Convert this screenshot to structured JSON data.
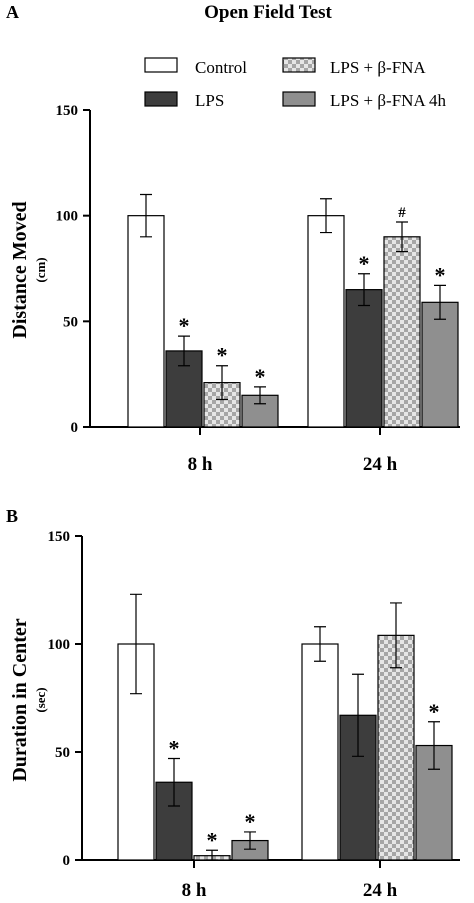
{
  "figure": {
    "title": "Open Field Test"
  },
  "legend": [
    {
      "label": "Control",
      "fill": "#ffffff",
      "pattern": ""
    },
    {
      "label": "LPS",
      "fill": "#3d3d3d",
      "pattern": ""
    },
    {
      "label": "LPS + β-FNA",
      "fill": "#cfcfcf",
      "pattern": "checker"
    },
    {
      "label": "LPS + β-FNA 4h",
      "fill": "#8f8f8f",
      "pattern": ""
    }
  ],
  "colors": {
    "control": "#ffffff",
    "lps": "#3d3d3d",
    "checker_light": "#e6e6e6",
    "checker_dark": "#a6a6a6",
    "fna4h": "#8f8f8f",
    "axis": "#000000"
  },
  "chart_data": [
    {
      "type": "bar",
      "panel": "A",
      "title": "Open Field Test",
      "ylabel": "Distance Moved",
      "yunit": "(cm)",
      "xlabel": "",
      "categories": [
        "8 h",
        "24 h"
      ],
      "ylim": [
        0,
        150
      ],
      "yticks": [
        "0",
        "50",
        "100",
        "150"
      ],
      "series": [
        {
          "name": "Control",
          "values": [
            100,
            100
          ],
          "errors": [
            10,
            8
          ],
          "marks": [
            "",
            ""
          ]
        },
        {
          "name": "LPS",
          "values": [
            36,
            65
          ],
          "errors": [
            7,
            7.5
          ],
          "marks": [
            "*",
            "*"
          ]
        },
        {
          "name": "LPS + β-FNA",
          "values": [
            21,
            90
          ],
          "errors": [
            8,
            7
          ],
          "marks": [
            "*",
            "#"
          ]
        },
        {
          "name": "LPS + β-FNA 4h",
          "values": [
            15,
            59
          ],
          "errors": [
            4,
            8
          ],
          "marks": [
            "*",
            "*"
          ]
        }
      ]
    },
    {
      "type": "bar",
      "panel": "B",
      "title": "",
      "ylabel": "Duration in Center",
      "yunit": "(sec)",
      "xlabel": "",
      "categories": [
        "8 h",
        "24 h"
      ],
      "ylim": [
        0,
        150
      ],
      "yticks": [
        "0",
        "50",
        "100",
        "150"
      ],
      "series": [
        {
          "name": "Control",
          "values": [
            100,
            100
          ],
          "errors": [
            23,
            8
          ],
          "marks": [
            "",
            ""
          ]
        },
        {
          "name": "LPS",
          "values": [
            36,
            67
          ],
          "errors": [
            11,
            19
          ],
          "marks": [
            "*",
            ""
          ]
        },
        {
          "name": "LPS + β-FNA",
          "values": [
            2,
            104
          ],
          "errors": [
            2.5,
            15
          ],
          "marks": [
            "*",
            ""
          ]
        },
        {
          "name": "LPS + β-FNA 4h",
          "values": [
            9,
            53
          ],
          "errors": [
            4,
            11
          ],
          "marks": [
            "*",
            "*"
          ]
        }
      ]
    }
  ]
}
